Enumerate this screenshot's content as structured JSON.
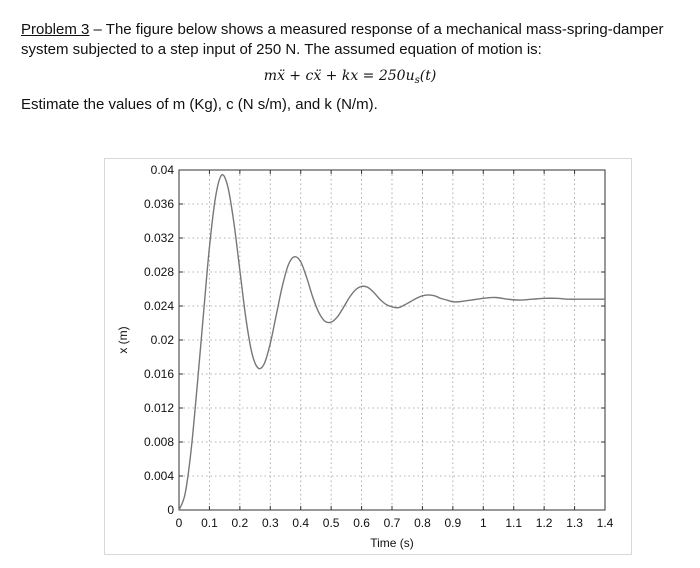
{
  "problem": {
    "label": "Problem 3",
    "text": " – The figure below shows a measured response of a mechanical mass-spring-damper system subjected to a step input of 250 N.   The assumed equation of motion is:",
    "equation_main": "mẍ + cẍ + kx = 250u",
    "equation_sub": "s",
    "equation_end": "(t)",
    "question": "Estimate the values of m (Kg), c (N s/m), and k (N/m)."
  },
  "chart_data": {
    "type": "line",
    "xlabel": "Time (s)",
    "ylabel": "x (m)",
    "xlim": [
      0,
      1.4
    ],
    "ylim": [
      0,
      0.04
    ],
    "xticks": [
      "0",
      "0.1",
      "0.2",
      "0.3",
      "0.4",
      "0.5",
      "0.6",
      "0.7",
      "0.8",
      "0.9",
      "1",
      "1.1",
      "1.2",
      "1.3",
      "1.4"
    ],
    "yticks": [
      "0",
      "0.004",
      "0.008",
      "0.012",
      "0.016",
      "0.02",
      "0.024",
      "0.028",
      "0.032",
      "0.036",
      "0.04"
    ],
    "grid": true,
    "series": [
      {
        "x": [
          0,
          0.02,
          0.04,
          0.06,
          0.08,
          0.1,
          0.12,
          0.14,
          0.16,
          0.18,
          0.2,
          0.22,
          0.24,
          0.26,
          0.28,
          0.3,
          0.32,
          0.34,
          0.36,
          0.38,
          0.4,
          0.42,
          0.44,
          0.46,
          0.48,
          0.5,
          0.52,
          0.54,
          0.56,
          0.58,
          0.6,
          0.62,
          0.64,
          0.66,
          0.68,
          0.7,
          0.72,
          0.74,
          0.76,
          0.78,
          0.8,
          0.82,
          0.84,
          0.86,
          0.88,
          0.9,
          0.92,
          0.94,
          0.96,
          0.98,
          1.0,
          1.04,
          1.08,
          1.12,
          1.16,
          1.2,
          1.24,
          1.28,
          1.32,
          1.36,
          1.4
        ],
        "y": [
          0,
          0.0019,
          0.0071,
          0.0147,
          0.0229,
          0.0309,
          0.0368,
          0.0394,
          0.0381,
          0.0339,
          0.0282,
          0.0225,
          0.0184,
          0.0167,
          0.0172,
          0.0196,
          0.023,
          0.0264,
          0.0289,
          0.0298,
          0.0292,
          0.0273,
          0.025,
          0.0232,
          0.0222,
          0.0221,
          0.0227,
          0.0238,
          0.025,
          0.0259,
          0.0263,
          0.0262,
          0.0256,
          0.0248,
          0.0242,
          0.0239,
          0.0238,
          0.0241,
          0.0245,
          0.0249,
          0.0252,
          0.0253,
          0.0252,
          0.0249,
          0.0247,
          0.0245,
          0.0245,
          0.0246,
          0.0247,
          0.0248,
          0.0249,
          0.025,
          0.0248,
          0.0247,
          0.0248,
          0.0249,
          0.0249,
          0.0248,
          0.0248,
          0.0248,
          0.0248
        ]
      }
    ]
  }
}
